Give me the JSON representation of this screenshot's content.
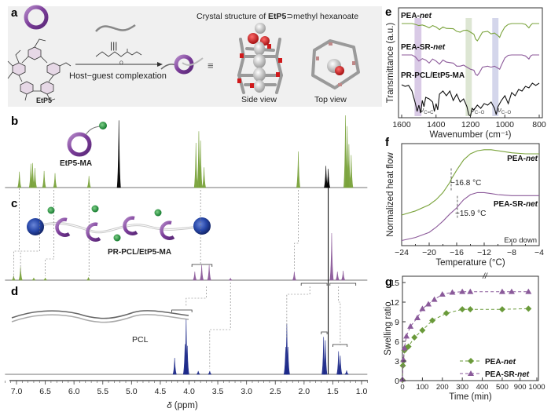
{
  "figure": {
    "panels": [
      "a",
      "b",
      "c",
      "d",
      "e",
      "f",
      "g"
    ]
  },
  "panel_a": {
    "letter": "a",
    "host_label": "EtP5",
    "arrow_label": "Host−guest complexation",
    "crystal_title_prefix": "Crystal structure of ",
    "crystal_title_bold": "EtP5",
    "crystal_title_suffix": "⊃methyl hexanoate",
    "side_view_label": "Side view",
    "top_view_label": "Top view",
    "equiv_symbol": "≡",
    "triple_bar": "|||",
    "colors": {
      "ring": "#8e4fa6",
      "ring_light": "#c9a3d8",
      "panel_bg": "#f0f0f0",
      "oxygen": "#d0191b",
      "carbon": "#a8a8a8"
    }
  },
  "nmr": {
    "xlabel_symbol": "δ",
    "xlabel_unit": " (ppm)",
    "xlim": [
      7.2,
      0.9
    ],
    "ticks": [
      "7.0",
      "6.5",
      "6.0",
      "5.5",
      "5.0",
      "4.5",
      "4.0",
      "3.5",
      "3.0",
      "2.5",
      "2.0",
      "1.5",
      "1.0"
    ],
    "tick_values": [
      7.0,
      6.5,
      6.0,
      5.5,
      5.0,
      4.5,
      4.0,
      3.5,
      3.0,
      2.5,
      2.0,
      1.5,
      1.0
    ],
    "solvent_line_ppm": 1.58,
    "colors": {
      "b": "#7aa33b",
      "c": "#8c5a9a",
      "d": "#1d2a8a",
      "solvent": "#000000",
      "dash": "#777777"
    }
  },
  "panel_b": {
    "letter": "b",
    "label": "EtP5-MA",
    "peaks": [
      {
        "ppm": 6.95,
        "h": 0.22
      },
      {
        "ppm": 6.75,
        "h": 0.33
      },
      {
        "ppm": 6.72,
        "h": 0.34
      },
      {
        "ppm": 6.68,
        "h": 0.27
      },
      {
        "ppm": 6.52,
        "h": 0.23
      },
      {
        "ppm": 6.33,
        "h": 0.2
      },
      {
        "ppm": 5.74,
        "h": 0.16
      },
      {
        "ppm": 5.22,
        "h": 0.93,
        "black": true
      },
      {
        "ppm": 3.88,
        "h": 0.62
      },
      {
        "ppm": 3.83,
        "h": 0.78
      },
      {
        "ppm": 3.8,
        "h": 0.65
      },
      {
        "ppm": 3.74,
        "h": 0.28
      },
      {
        "ppm": 2.1,
        "h": 0.5
      },
      {
        "ppm": 1.62,
        "h": 0.3,
        "black": true
      },
      {
        "ppm": 1.58,
        "h": 0.26,
        "black": true
      },
      {
        "ppm": 1.28,
        "h": 1.0
      },
      {
        "ppm": 1.25,
        "h": 0.85
      },
      {
        "ppm": 1.22,
        "h": 0.6
      },
      {
        "ppm": 1.18,
        "h": 0.45
      }
    ]
  },
  "panel_c": {
    "letter": "c",
    "label": "PR-PCL/EtP5-MA",
    "peaks": [
      {
        "ppm": 7.05,
        "h": 0.09,
        "green": true
      },
      {
        "ppm": 6.93,
        "h": 0.28,
        "green": true
      },
      {
        "ppm": 6.7,
        "h": 0.05,
        "green": true
      },
      {
        "ppm": 6.5,
        "h": 0.05,
        "green": true
      },
      {
        "ppm": 5.75,
        "h": 0.06,
        "green": true
      },
      {
        "ppm": 3.9,
        "h": 0.18
      },
      {
        "ppm": 3.78,
        "h": 0.32
      },
      {
        "ppm": 3.65,
        "h": 0.32
      },
      {
        "ppm": 3.28,
        "h": 0.04
      },
      {
        "ppm": 2.17,
        "h": 0.18
      },
      {
        "ppm": 1.52,
        "h": 1.0
      },
      {
        "ppm": 1.42,
        "h": 0.18
      },
      {
        "ppm": 1.32,
        "h": 0.2
      }
    ]
  },
  "panel_d": {
    "letter": "d",
    "label": "PCL",
    "peaks": [
      {
        "ppm": 4.25,
        "h": 0.3
      },
      {
        "ppm": 4.07,
        "h": 0.55
      },
      {
        "ppm": 4.05,
        "h": 1.0
      },
      {
        "ppm": 4.03,
        "h": 0.52
      },
      {
        "ppm": 3.84,
        "h": 0.06
      },
      {
        "ppm": 3.64,
        "h": 0.06
      },
      {
        "ppm": 2.32,
        "h": 0.5
      },
      {
        "ppm": 2.3,
        "h": 0.92
      },
      {
        "ppm": 2.28,
        "h": 0.5
      },
      {
        "ppm": 1.66,
        "h": 0.68
      },
      {
        "ppm": 1.63,
        "h": 0.62
      },
      {
        "ppm": 1.4,
        "h": 0.42
      },
      {
        "ppm": 1.37,
        "h": 0.34
      },
      {
        "ppm": 1.26,
        "h": 0.07
      }
    ]
  },
  "chart_data": [
    {
      "panel": "e",
      "type": "line",
      "xlabel": "Wavenumber (cm⁻¹)",
      "ylabel": "Transmittance (a.u.)",
      "xlim": [
        1600,
        800
      ],
      "xticks": [
        1600,
        1400,
        1200,
        1000,
        800
      ],
      "series": [
        {
          "name": "PEA-net",
          "name_bold": "PEA-",
          "name_italic": "net",
          "color": "#7aa33b",
          "x": [
            1600,
            1540,
            1520,
            1500,
            1480,
            1460,
            1440,
            1420,
            1400,
            1380,
            1360,
            1340,
            1300,
            1280,
            1260,
            1240,
            1220,
            1200,
            1180,
            1170,
            1160,
            1150,
            1130,
            1100,
            1080,
            1060,
            1040,
            1030,
            1020,
            1000,
            980,
            960,
            940,
            900,
            880,
            860,
            850,
            840,
            820,
            800
          ],
          "y": [
            0.0,
            0.0,
            -0.05,
            -0.12,
            -0.08,
            -0.15,
            -0.25,
            -0.12,
            -0.2,
            -0.35,
            -0.2,
            -0.28,
            -0.3,
            -0.45,
            -0.5,
            -0.4,
            -0.38,
            -0.5,
            -0.62,
            -0.9,
            -1.0,
            -0.85,
            -0.5,
            -0.45,
            -0.6,
            -0.55,
            -0.7,
            -0.8,
            -0.55,
            -0.2,
            -0.05,
            0.0,
            0.0,
            0.0,
            -0.05,
            -0.25,
            -0.1,
            0.0,
            0.0,
            0.0
          ]
        },
        {
          "name": "PEA-SR-net",
          "name_bold": "PEA-SR-",
          "name_italic": "net",
          "color": "#8c5a9a",
          "x": [
            1600,
            1540,
            1520,
            1500,
            1480,
            1460,
            1440,
            1420,
            1400,
            1380,
            1360,
            1340,
            1300,
            1280,
            1260,
            1240,
            1220,
            1200,
            1180,
            1170,
            1160,
            1150,
            1130,
            1100,
            1080,
            1060,
            1040,
            1030,
            1020,
            1000,
            980,
            960,
            940,
            900,
            880,
            860,
            850,
            840,
            820,
            800
          ],
          "y": [
            0.0,
            0.0,
            -0.1,
            -0.3,
            -0.18,
            -0.25,
            -0.4,
            -0.2,
            -0.3,
            -0.45,
            -0.25,
            -0.35,
            -0.4,
            -0.55,
            -0.55,
            -0.5,
            -0.6,
            -0.7,
            -0.75,
            -0.95,
            -1.0,
            -0.9,
            -0.6,
            -0.55,
            -0.6,
            -0.55,
            -0.65,
            -0.7,
            -0.5,
            -0.15,
            -0.02,
            0.0,
            0.0,
            0.0,
            -0.05,
            -0.2,
            -0.05,
            0.0,
            0.0,
            0.0
          ]
        },
        {
          "name": "PR-PCL/EtP5-MA",
          "name_bold": "PR-PCL/EtP5-MA",
          "name_italic": "",
          "color": "#111111",
          "x": [
            1600,
            1580,
            1560,
            1540,
            1520,
            1510,
            1500,
            1490,
            1480,
            1470,
            1460,
            1440,
            1420,
            1410,
            1400,
            1390,
            1380,
            1360,
            1340,
            1320,
            1300,
            1280,
            1260,
            1240,
            1220,
            1210,
            1200,
            1190,
            1180,
            1160,
            1140,
            1120,
            1100,
            1080,
            1060,
            1050,
            1040,
            1020,
            1000,
            980,
            960,
            940,
            920,
            900,
            880,
            860,
            840,
            820,
            800
          ],
          "y": [
            0.0,
            -0.05,
            -0.02,
            -0.2,
            -0.6,
            -0.85,
            -0.65,
            -0.9,
            -0.5,
            -0.7,
            -0.4,
            -0.45,
            -0.55,
            -0.85,
            -0.6,
            -0.8,
            -0.3,
            -0.2,
            -0.35,
            -0.2,
            -0.5,
            -0.3,
            -0.55,
            -0.45,
            -0.7,
            -0.95,
            -1.0,
            -0.75,
            -0.8,
            -0.65,
            -0.75,
            -0.6,
            -0.65,
            -0.55,
            -0.75,
            -0.95,
            -0.7,
            -0.5,
            -0.35,
            -0.6,
            -0.25,
            -0.35,
            -0.15,
            -0.2,
            -0.05,
            -0.1,
            0.05,
            -0.02,
            0.05
          ]
        }
      ],
      "bands": [
        {
          "center": 1505,
          "width": 40,
          "color": "#c9b3dc",
          "label": "ν",
          "label_sub": "C=C"
        },
        {
          "center": 1210,
          "width": 36,
          "color": "#cfdcc0",
          "label": "ν",
          "label_sub": "C−O"
        },
        {
          "center": 1055,
          "width": 36,
          "color": "#c2c4e2",
          "label": "ν",
          "label_sub": "C−O"
        }
      ]
    },
    {
      "panel": "f",
      "type": "line",
      "xlabel": "Temperature (°C)",
      "ylabel": "Normalized heat flow",
      "xlim": [
        -24,
        -4
      ],
      "xticks": [
        -24,
        -20,
        -16,
        -12,
        -8,
        -4
      ],
      "annotation": "Exo down",
      "series": [
        {
          "name": "PEA-net",
          "name_bold": "PEA-",
          "name_italic": "net",
          "color": "#7aa33b",
          "tg": -16.8,
          "tg_label": "−16.8 °C",
          "x": [
            -24,
            -22,
            -20,
            -19,
            -18,
            -17,
            -16.8,
            -16,
            -15,
            -14,
            -13,
            -12,
            -11,
            -10,
            -8,
            -6,
            -4
          ],
          "y": [
            0.3,
            0.34,
            0.4,
            0.45,
            0.52,
            0.62,
            0.65,
            0.74,
            0.84,
            0.9,
            0.93,
            0.94,
            0.94,
            0.93,
            0.91,
            0.9,
            0.9
          ]
        },
        {
          "name": "PEA-SR-net",
          "name_bold": "PEA-SR-",
          "name_italic": "net",
          "color": "#8c5a9a",
          "tg": -15.9,
          "tg_label": "−15.9 °C",
          "x": [
            -24,
            -22,
            -20,
            -19,
            -18,
            -17,
            -16,
            -15.9,
            -15,
            -14,
            -13,
            -12,
            -11,
            -10,
            -8,
            -6,
            -4
          ],
          "y": [
            0.05,
            0.08,
            0.13,
            0.18,
            0.24,
            0.31,
            0.37,
            0.38,
            0.45,
            0.5,
            0.52,
            0.52,
            0.51,
            0.5,
            0.49,
            0.49,
            0.49
          ]
        }
      ]
    },
    {
      "panel": "g",
      "type": "scatter",
      "xlabel": "Time (min)",
      "ylabel": "Swelling ratio",
      "ylim": [
        0,
        15
      ],
      "yticks": [
        0,
        3,
        6,
        9,
        12,
        15
      ],
      "xticks": [
        "0",
        "100",
        "200",
        "300",
        "400",
        "500",
        "900",
        "1000"
      ],
      "xtick_values": [
        0,
        100,
        200,
        300,
        400,
        500,
        900,
        1000
      ],
      "axis_break": "//",
      "series": [
        {
          "name": "PEA-net",
          "name_bold": "PEA-",
          "name_italic": "net",
          "marker": "diamond",
          "color": "#6a9a3a",
          "x": [
            0,
            2,
            5,
            10,
            20,
            30,
            60,
            100,
            150,
            220,
            300,
            340,
            500,
            950
          ],
          "y": [
            0.1,
            2.3,
            3.0,
            4.6,
            5.0,
            5.2,
            6.6,
            7.7,
            9.2,
            10.3,
            10.9,
            10.9,
            10.9,
            11.0
          ]
        },
        {
          "name": "PEA-SR-net",
          "name_bold": "PEA-SR-",
          "name_italic": "net",
          "marker": "triangle",
          "color": "#8a5a9a",
          "x": [
            0,
            5,
            10,
            20,
            40,
            75,
            100,
            130,
            160,
            200,
            250,
            300,
            340,
            500,
            850,
            950
          ],
          "y": [
            0.2,
            3.2,
            5.0,
            6.8,
            8.3,
            9.6,
            11.0,
            11.7,
            12.4,
            13.2,
            13.5,
            13.6,
            13.6,
            13.6,
            13.6,
            13.6
          ]
        }
      ]
    }
  ]
}
